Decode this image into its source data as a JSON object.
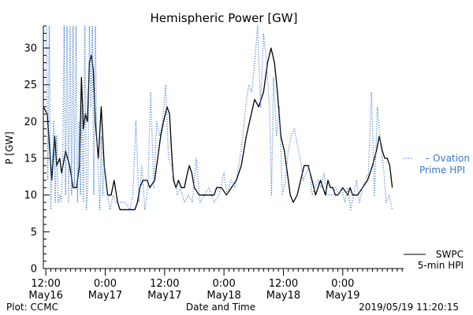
{
  "chart_data": {
    "type": "line",
    "title": "Hemispheric Power [GW]",
    "xlabel": "Date and Time",
    "ylabel": "P [GW]",
    "ylim": [
      0,
      33
    ],
    "xlim": [
      -0.5,
      72.3
    ],
    "yticks": [
      0,
      5,
      10,
      15,
      20,
      25,
      30
    ],
    "xticks": [
      {
        "x": 0,
        "label1": "12:00",
        "label2": "May16"
      },
      {
        "x": 12,
        "label1": "0:00",
        "label2": "May17"
      },
      {
        "x": 24,
        "label1": "12:00",
        "label2": "May17"
      },
      {
        "x": 36,
        "label1": "0:00",
        "label2": "May18"
      },
      {
        "x": 48,
        "label1": "12:00",
        "label2": "May18"
      },
      {
        "x": 60,
        "label1": "0:00",
        "label2": "May19"
      }
    ],
    "x_unit": "hours after 2019-05-16 12:00 UT",
    "grid": false,
    "series": [
      {
        "name": "SWPC 5-min HPI",
        "color": "#000000",
        "style": "solid",
        "points": [
          [
            -0.5,
            22
          ],
          [
            0.3,
            21
          ],
          [
            0.8,
            16
          ],
          [
            1.2,
            12
          ],
          [
            1.8,
            18
          ],
          [
            2.2,
            14
          ],
          [
            2.8,
            15
          ],
          [
            3.2,
            13
          ],
          [
            4,
            16
          ],
          [
            4.8,
            14
          ],
          [
            5.5,
            11
          ],
          [
            6.2,
            11
          ],
          [
            6.8,
            14
          ],
          [
            7.2,
            26
          ],
          [
            7.6,
            19
          ],
          [
            8,
            21
          ],
          [
            8.4,
            20
          ],
          [
            8.8,
            28
          ],
          [
            9.2,
            29
          ],
          [
            9.6,
            27
          ],
          [
            10,
            20
          ],
          [
            10.6,
            15
          ],
          [
            11.2,
            22
          ],
          [
            11.8,
            14
          ],
          [
            12.5,
            10
          ],
          [
            13.2,
            10
          ],
          [
            13.8,
            12
          ],
          [
            14.5,
            9
          ],
          [
            15,
            8
          ],
          [
            16,
            8
          ],
          [
            17,
            8
          ],
          [
            18,
            8
          ],
          [
            18.5,
            9
          ],
          [
            19,
            11
          ],
          [
            19.6,
            12
          ],
          [
            20.5,
            12
          ],
          [
            21,
            11
          ],
          [
            22,
            12
          ],
          [
            22.6,
            15
          ],
          [
            23.2,
            18
          ],
          [
            23.8,
            20
          ],
          [
            24.5,
            22
          ],
          [
            25,
            21
          ],
          [
            25.4,
            16
          ],
          [
            25.8,
            12
          ],
          [
            26.3,
            11
          ],
          [
            26.8,
            12
          ],
          [
            27.4,
            11
          ],
          [
            28,
            11
          ],
          [
            28.6,
            13
          ],
          [
            29,
            14
          ],
          [
            29.5,
            13
          ],
          [
            30,
            11
          ],
          [
            31,
            10
          ],
          [
            32,
            10
          ],
          [
            33,
            10
          ],
          [
            34,
            10
          ],
          [
            34.5,
            11
          ],
          [
            35.5,
            11
          ],
          [
            36.5,
            10
          ],
          [
            37.5,
            11
          ],
          [
            38.5,
            12
          ],
          [
            39.5,
            14
          ],
          [
            40.5,
            18
          ],
          [
            41.5,
            21
          ],
          [
            42.2,
            23
          ],
          [
            43,
            22
          ],
          [
            44,
            24
          ],
          [
            44.8,
            28
          ],
          [
            45.5,
            30
          ],
          [
            46.2,
            28
          ],
          [
            46.8,
            24
          ],
          [
            47.5,
            18
          ],
          [
            48.2,
            16
          ],
          [
            48.8,
            13
          ],
          [
            49.4,
            10
          ],
          [
            50,
            9
          ],
          [
            50.8,
            10
          ],
          [
            51.5,
            12
          ],
          [
            52.2,
            14
          ],
          [
            53,
            14
          ],
          [
            53.8,
            12
          ],
          [
            54.5,
            10
          ],
          [
            55,
            11
          ],
          [
            55.5,
            12
          ],
          [
            56,
            11
          ],
          [
            56.5,
            10
          ],
          [
            57,
            12
          ],
          [
            57.5,
            11
          ],
          [
            58,
            11
          ],
          [
            58.5,
            10
          ],
          [
            59,
            10
          ],
          [
            60,
            11
          ],
          [
            61,
            10
          ],
          [
            61.5,
            11
          ],
          [
            62,
            10
          ],
          [
            63,
            10
          ],
          [
            64,
            11
          ],
          [
            65,
            12
          ],
          [
            66,
            14
          ],
          [
            66.8,
            16
          ],
          [
            67.4,
            18
          ],
          [
            68,
            16
          ],
          [
            68.5,
            15
          ],
          [
            69,
            15
          ],
          [
            69.5,
            14
          ],
          [
            70,
            11
          ]
        ]
      },
      {
        "name": "Ovation Prime HPI",
        "color": "#3a78d0",
        "style": "dotted",
        "points": [
          [
            -0.5,
            33
          ],
          [
            0.1,
            33
          ],
          [
            0.4,
            12
          ],
          [
            0.7,
            33
          ],
          [
            1.0,
            8
          ],
          [
            1.3,
            14
          ],
          [
            1.6,
            20
          ],
          [
            1.9,
            9
          ],
          [
            2.2,
            18
          ],
          [
            2.5,
            9
          ],
          [
            2.8,
            10
          ],
          [
            3.1,
            9
          ],
          [
            3.4,
            14
          ],
          [
            3.7,
            33
          ],
          [
            4.0,
            10
          ],
          [
            4.3,
            33
          ],
          [
            4.6,
            9
          ],
          [
            4.9,
            33
          ],
          [
            5.2,
            10
          ],
          [
            5.5,
            33
          ],
          [
            5.8,
            11
          ],
          [
            6.1,
            33
          ],
          [
            6.4,
            9
          ],
          [
            6.7,
            20
          ],
          [
            7.0,
            10
          ],
          [
            7.3,
            22
          ],
          [
            7.6,
            9
          ],
          [
            7.9,
            33
          ],
          [
            8.2,
            8
          ],
          [
            8.5,
            12
          ],
          [
            8.8,
            33
          ],
          [
            9.1,
            22
          ],
          [
            9.4,
            33
          ],
          [
            9.7,
            10
          ],
          [
            10.0,
            33
          ],
          [
            10.3,
            18
          ],
          [
            10.6,
            13
          ],
          [
            10.9,
            8
          ],
          [
            11.2,
            18
          ],
          [
            11.5,
            10
          ],
          [
            11.8,
            14
          ],
          [
            12.4,
            10
          ],
          [
            13.0,
            8
          ],
          [
            13.6,
            10
          ],
          [
            14.2,
            9
          ],
          [
            15.0,
            9
          ],
          [
            16.0,
            9
          ],
          [
            17.0,
            8
          ],
          [
            17.6,
            10
          ],
          [
            18.2,
            20
          ],
          [
            18.8,
            9
          ],
          [
            19.4,
            14
          ],
          [
            20.0,
            8
          ],
          [
            20.6,
            11
          ],
          [
            21.2,
            24
          ],
          [
            21.8,
            11
          ],
          [
            22.4,
            20
          ],
          [
            23.0,
            18
          ],
          [
            23.6,
            20
          ],
          [
            24.2,
            25
          ],
          [
            24.8,
            15
          ],
          [
            25.4,
            14
          ],
          [
            26.0,
            12
          ],
          [
            26.6,
            10
          ],
          [
            27.2,
            11
          ],
          [
            28.0,
            9
          ],
          [
            28.8,
            10
          ],
          [
            29.6,
            9
          ],
          [
            30.4,
            15
          ],
          [
            31.2,
            9
          ],
          [
            32.0,
            10
          ],
          [
            33.0,
            11
          ],
          [
            34.0,
            9
          ],
          [
            35.0,
            10
          ],
          [
            36.0,
            13
          ],
          [
            36.6,
            10
          ],
          [
            37.4,
            12
          ],
          [
            38.2,
            11
          ],
          [
            39.0,
            14
          ],
          [
            39.8,
            18
          ],
          [
            40.4,
            22
          ],
          [
            41.0,
            25
          ],
          [
            41.6,
            24
          ],
          [
            42.2,
            28
          ],
          [
            42.8,
            33
          ],
          [
            43.4,
            22
          ],
          [
            44.0,
            32
          ],
          [
            44.6,
            28
          ],
          [
            45.2,
            22
          ],
          [
            45.6,
            10
          ],
          [
            46.0,
            26
          ],
          [
            46.6,
            18
          ],
          [
            47.2,
            22
          ],
          [
            47.8,
            10
          ],
          [
            48.4,
            12
          ],
          [
            49.0,
            16
          ],
          [
            49.6,
            18
          ],
          [
            50.2,
            19
          ],
          [
            50.8,
            17
          ],
          [
            51.4,
            15
          ],
          [
            52.0,
            12
          ],
          [
            52.6,
            13
          ],
          [
            53.2,
            14
          ],
          [
            53.8,
            10
          ],
          [
            54.4,
            11
          ],
          [
            55.0,
            12
          ],
          [
            55.6,
            11
          ],
          [
            56.2,
            13
          ],
          [
            56.8,
            10
          ],
          [
            57.4,
            10
          ],
          [
            58.0,
            10
          ],
          [
            58.6,
            11
          ],
          [
            59.2,
            10
          ],
          [
            59.8,
            11
          ],
          [
            60.4,
            9
          ],
          [
            61.0,
            11
          ],
          [
            61.6,
            8
          ],
          [
            62.2,
            10
          ],
          [
            62.8,
            12
          ],
          [
            63.4,
            9
          ],
          [
            64.0,
            11
          ],
          [
            64.6,
            12
          ],
          [
            65.2,
            13
          ],
          [
            65.8,
            24
          ],
          [
            66.4,
            10
          ],
          [
            67.0,
            22
          ],
          [
            67.6,
            17
          ],
          [
            68.2,
            14
          ],
          [
            68.8,
            9
          ],
          [
            69.4,
            10
          ],
          [
            70.0,
            8
          ]
        ]
      }
    ],
    "legend": [
      {
        "text": "– Ovation",
        "text2": "Prime HPI",
        "color": "#3a78d0"
      },
      {
        "text": "SWPC",
        "text2": "5-min HPI",
        "color": "#000000"
      }
    ]
  },
  "footer": {
    "left": "Plot: CCMC",
    "right": "2019/05/19 11:20:15"
  }
}
